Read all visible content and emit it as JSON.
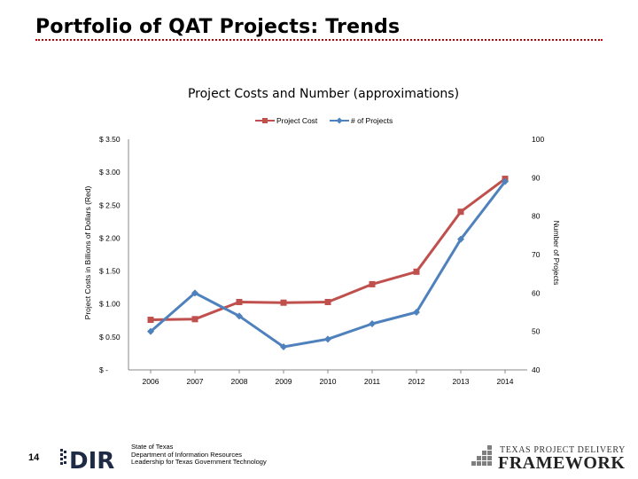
{
  "slide": {
    "title": "Portfolio of QAT Projects: Trends",
    "page_number": "14"
  },
  "footer": {
    "line1": "State of Texas",
    "line2": "Department of Information Resources",
    "line3": "Leadership for Texas Government Technology",
    "logo_left": "DIR",
    "logo_right_top": "TEXAS PROJECT DELIVERY",
    "logo_right_bottom": "FRAMEWORK"
  },
  "colors": {
    "cost": "#c0504d",
    "projects": "#4f81bd",
    "rule": "#c00000"
  },
  "chart_data": {
    "type": "line",
    "title": "Project Costs and Number (approximations)",
    "xlabel": "",
    "ylabel": "Project Costs in Billions of Dollars (Red)",
    "y2label": "Number of Projects",
    "categories": [
      "2006",
      "2007",
      "2008",
      "2009",
      "2010",
      "2011",
      "2012",
      "2013",
      "2014"
    ],
    "ylim": [
      0,
      3.5
    ],
    "y2lim": [
      40,
      100
    ],
    "yticks": [
      0,
      0.5,
      1.0,
      1.5,
      2.0,
      2.5,
      3.0,
      3.5
    ],
    "ytick_labels": [
      "$ -",
      "$ 0.50",
      "$ 1.00",
      "$ 1.50",
      "$ 2.00",
      "$ 2.50",
      "$ 3.00",
      "$ 3.50"
    ],
    "y2ticks": [
      40,
      50,
      60,
      70,
      80,
      90,
      100
    ],
    "y2tick_labels": [
      "40",
      "50",
      "60",
      "70",
      "80",
      "90",
      "100"
    ],
    "legend_position": "top",
    "grid": false,
    "series": [
      {
        "name": "Project Cost",
        "axis": "left",
        "marker": "square",
        "values": [
          0.76,
          0.77,
          1.03,
          1.02,
          1.03,
          1.3,
          1.49,
          2.4,
          2.9
        ]
      },
      {
        "name": "# of Projects",
        "axis": "right",
        "marker": "diamond",
        "values": [
          50,
          60,
          54,
          46,
          48,
          52,
          55,
          74,
          89
        ]
      }
    ]
  }
}
